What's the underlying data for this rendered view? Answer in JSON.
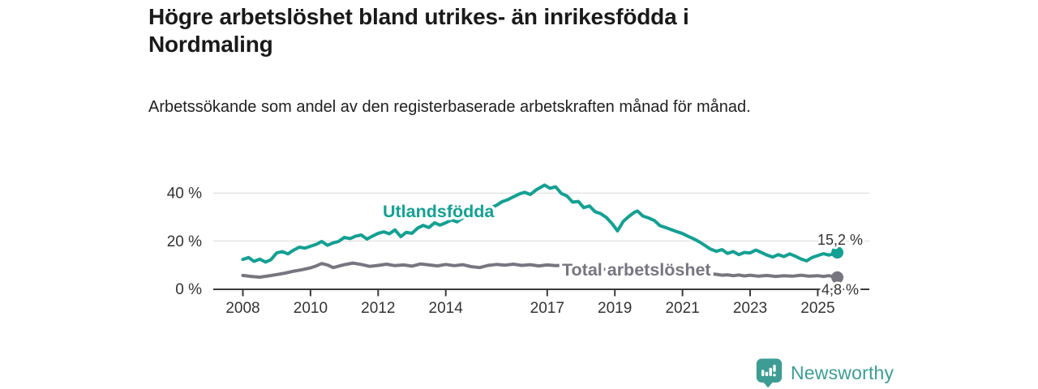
{
  "header": {
    "title": "Högre arbetslöshet bland utrikes- än inrikesfödda i Nordmaling",
    "subtitle": "Arbetssökande som andel av den registerbaserade arbetskraften månad för månad."
  },
  "footer": {
    "brand": "Newsworthy",
    "brand_color": "#3d9c94"
  },
  "colors": {
    "background": "#ffffff",
    "title_text": "#1a1a1a",
    "axis": "#3a3a3a",
    "gridline": "#d9d9d9",
    "annotation_text": "#333333"
  },
  "chart_data": {
    "type": "line",
    "title": "Högre arbetslöshet bland utrikes- än inrikesfödda i Nordmaling",
    "subtitle": "Arbetssökande som andel av den registerbaserade arbetskraften månad för månad.",
    "xlabel": "",
    "ylabel": "",
    "grid": "horizontal",
    "legend_position": "inline-labels",
    "x_axis": {
      "range": [
        2007.1,
        2026.5
      ],
      "ticks": [
        2008,
        2010,
        2012,
        2014,
        2017,
        2019,
        2021,
        2023,
        2025
      ]
    },
    "y_axis": {
      "range": [
        0,
        45
      ],
      "unit": "%",
      "ticks": [
        {
          "value": 0,
          "label": "0 %"
        },
        {
          "value": 20,
          "label": "20 %"
        },
        {
          "value": 40,
          "label": "40 %"
        }
      ]
    },
    "series": [
      {
        "name": "Utlandsfödda",
        "color": "#14a092",
        "end_value": 15.2,
        "end_label": "15,2 %",
        "points": [
          [
            2008.0,
            12.3
          ],
          [
            2008.17,
            13.1
          ],
          [
            2008.33,
            11.5
          ],
          [
            2008.5,
            12.4
          ],
          [
            2008.67,
            11.2
          ],
          [
            2008.83,
            12.2
          ],
          [
            2009.0,
            15.0
          ],
          [
            2009.17,
            15.6
          ],
          [
            2009.33,
            14.6
          ],
          [
            2009.5,
            16.2
          ],
          [
            2009.67,
            17.4
          ],
          [
            2009.83,
            17.0
          ],
          [
            2010.0,
            17.8
          ],
          [
            2010.17,
            18.6
          ],
          [
            2010.33,
            19.8
          ],
          [
            2010.5,
            18.2
          ],
          [
            2010.67,
            19.2
          ],
          [
            2010.83,
            19.8
          ],
          [
            2011.0,
            21.5
          ],
          [
            2011.17,
            21.0
          ],
          [
            2011.33,
            22.0
          ],
          [
            2011.5,
            22.5
          ],
          [
            2011.67,
            20.8
          ],
          [
            2011.83,
            22.0
          ],
          [
            2012.0,
            23.2
          ],
          [
            2012.17,
            23.8
          ],
          [
            2012.33,
            23.0
          ],
          [
            2012.5,
            24.6
          ],
          [
            2012.67,
            21.8
          ],
          [
            2012.83,
            23.6
          ],
          [
            2013.0,
            23.2
          ],
          [
            2013.17,
            25.4
          ],
          [
            2013.33,
            26.5
          ],
          [
            2013.5,
            25.6
          ],
          [
            2013.67,
            27.6
          ],
          [
            2013.83,
            26.6
          ],
          [
            2014.0,
            27.6
          ],
          [
            2014.17,
            28.8
          ],
          [
            2014.33,
            28.0
          ],
          [
            2014.5,
            29.6
          ],
          [
            2014.67,
            30.8
          ],
          [
            2014.83,
            30.0
          ],
          [
            2015.0,
            31.2
          ],
          [
            2015.17,
            32.4
          ],
          [
            2015.33,
            33.8
          ],
          [
            2015.5,
            34.9
          ],
          [
            2015.67,
            36.4
          ],
          [
            2015.83,
            37.2
          ],
          [
            2016.0,
            38.4
          ],
          [
            2016.17,
            39.6
          ],
          [
            2016.33,
            40.3
          ],
          [
            2016.5,
            39.4
          ],
          [
            2016.67,
            41.3
          ],
          [
            2016.92,
            43.3
          ],
          [
            2017.08,
            42.0
          ],
          [
            2017.25,
            42.6
          ],
          [
            2017.42,
            39.8
          ],
          [
            2017.58,
            38.8
          ],
          [
            2017.75,
            36.2
          ],
          [
            2017.92,
            36.5
          ],
          [
            2018.08,
            33.9
          ],
          [
            2018.25,
            34.6
          ],
          [
            2018.42,
            32.2
          ],
          [
            2018.58,
            31.4
          ],
          [
            2018.75,
            29.8
          ],
          [
            2018.92,
            27.2
          ],
          [
            2019.08,
            24.2
          ],
          [
            2019.25,
            28.2
          ],
          [
            2019.42,
            30.3
          ],
          [
            2019.58,
            32.0
          ],
          [
            2019.67,
            32.5
          ],
          [
            2019.83,
            30.4
          ],
          [
            2020.0,
            29.6
          ],
          [
            2020.17,
            28.5
          ],
          [
            2020.33,
            26.4
          ],
          [
            2020.5,
            25.6
          ],
          [
            2020.67,
            24.7
          ],
          [
            2020.83,
            23.9
          ],
          [
            2021.0,
            23.1
          ],
          [
            2021.17,
            21.9
          ],
          [
            2021.33,
            20.9
          ],
          [
            2021.5,
            19.6
          ],
          [
            2021.67,
            18.1
          ],
          [
            2021.83,
            16.6
          ],
          [
            2022.0,
            15.7
          ],
          [
            2022.17,
            16.4
          ],
          [
            2022.33,
            14.8
          ],
          [
            2022.5,
            15.6
          ],
          [
            2022.67,
            14.3
          ],
          [
            2022.83,
            15.2
          ],
          [
            2023.0,
            15.0
          ],
          [
            2023.17,
            16.2
          ],
          [
            2023.33,
            15.2
          ],
          [
            2023.5,
            14.1
          ],
          [
            2023.67,
            13.3
          ],
          [
            2023.83,
            14.3
          ],
          [
            2024.0,
            13.5
          ],
          [
            2024.17,
            14.6
          ],
          [
            2024.33,
            13.7
          ],
          [
            2024.5,
            12.5
          ],
          [
            2024.67,
            11.7
          ],
          [
            2024.83,
            13.1
          ],
          [
            2025.0,
            13.9
          ],
          [
            2025.17,
            14.7
          ],
          [
            2025.33,
            14.1
          ],
          [
            2025.58,
            15.2
          ]
        ]
      },
      {
        "name": "Total arbetslöshet",
        "color": "#77757f",
        "end_value": 4.8,
        "end_label": "4,8 %",
        "points": [
          [
            2008.0,
            5.6
          ],
          [
            2008.25,
            5.2
          ],
          [
            2008.5,
            4.9
          ],
          [
            2008.75,
            5.4
          ],
          [
            2009.0,
            6.0
          ],
          [
            2009.25,
            6.6
          ],
          [
            2009.5,
            7.4
          ],
          [
            2009.75,
            8.0
          ],
          [
            2010.0,
            8.8
          ],
          [
            2010.17,
            9.6
          ],
          [
            2010.33,
            10.6
          ],
          [
            2010.5,
            10.0
          ],
          [
            2010.67,
            8.9
          ],
          [
            2010.83,
            9.5
          ],
          [
            2011.0,
            10.1
          ],
          [
            2011.25,
            10.8
          ],
          [
            2011.5,
            10.2
          ],
          [
            2011.75,
            9.4
          ],
          [
            2012.0,
            9.8
          ],
          [
            2012.25,
            10.3
          ],
          [
            2012.5,
            9.7
          ],
          [
            2012.75,
            10.0
          ],
          [
            2013.0,
            9.5
          ],
          [
            2013.25,
            10.4
          ],
          [
            2013.5,
            10.0
          ],
          [
            2013.75,
            9.6
          ],
          [
            2014.0,
            10.2
          ],
          [
            2014.25,
            9.7
          ],
          [
            2014.5,
            10.1
          ],
          [
            2014.75,
            9.3
          ],
          [
            2015.0,
            8.9
          ],
          [
            2015.25,
            9.8
          ],
          [
            2015.5,
            10.2
          ],
          [
            2015.75,
            9.9
          ],
          [
            2016.0,
            10.3
          ],
          [
            2016.25,
            9.8
          ],
          [
            2016.5,
            10.1
          ],
          [
            2016.75,
            9.6
          ],
          [
            2017.0,
            10.0
          ],
          [
            2017.25,
            9.7
          ],
          [
            2017.5,
            9.9
          ],
          [
            2017.75,
            9.4
          ],
          [
            2018.0,
            9.0
          ],
          [
            2018.25,
            8.7
          ],
          [
            2018.5,
            8.4
          ],
          [
            2018.75,
            8.1
          ],
          [
            2019.0,
            7.8
          ],
          [
            2019.25,
            7.6
          ],
          [
            2019.5,
            7.9
          ],
          [
            2019.75,
            8.1
          ],
          [
            2020.0,
            8.4
          ],
          [
            2020.25,
            8.1
          ],
          [
            2020.5,
            7.7
          ],
          [
            2020.75,
            7.3
          ],
          [
            2021.0,
            7.0
          ],
          [
            2021.25,
            6.7
          ],
          [
            2021.5,
            6.5
          ],
          [
            2021.75,
            6.3
          ],
          [
            2022.0,
            6.1
          ],
          [
            2022.17,
            5.7
          ],
          [
            2022.33,
            5.9
          ],
          [
            2022.5,
            5.5
          ],
          [
            2022.67,
            5.8
          ],
          [
            2022.83,
            5.4
          ],
          [
            2023.0,
            5.7
          ],
          [
            2023.25,
            5.3
          ],
          [
            2023.5,
            5.6
          ],
          [
            2023.75,
            5.2
          ],
          [
            2024.0,
            5.5
          ],
          [
            2024.25,
            5.3
          ],
          [
            2024.5,
            5.7
          ],
          [
            2024.75,
            5.3
          ],
          [
            2025.0,
            5.5
          ],
          [
            2025.17,
            5.2
          ],
          [
            2025.33,
            5.5
          ],
          [
            2025.58,
            4.8
          ]
        ]
      }
    ]
  }
}
